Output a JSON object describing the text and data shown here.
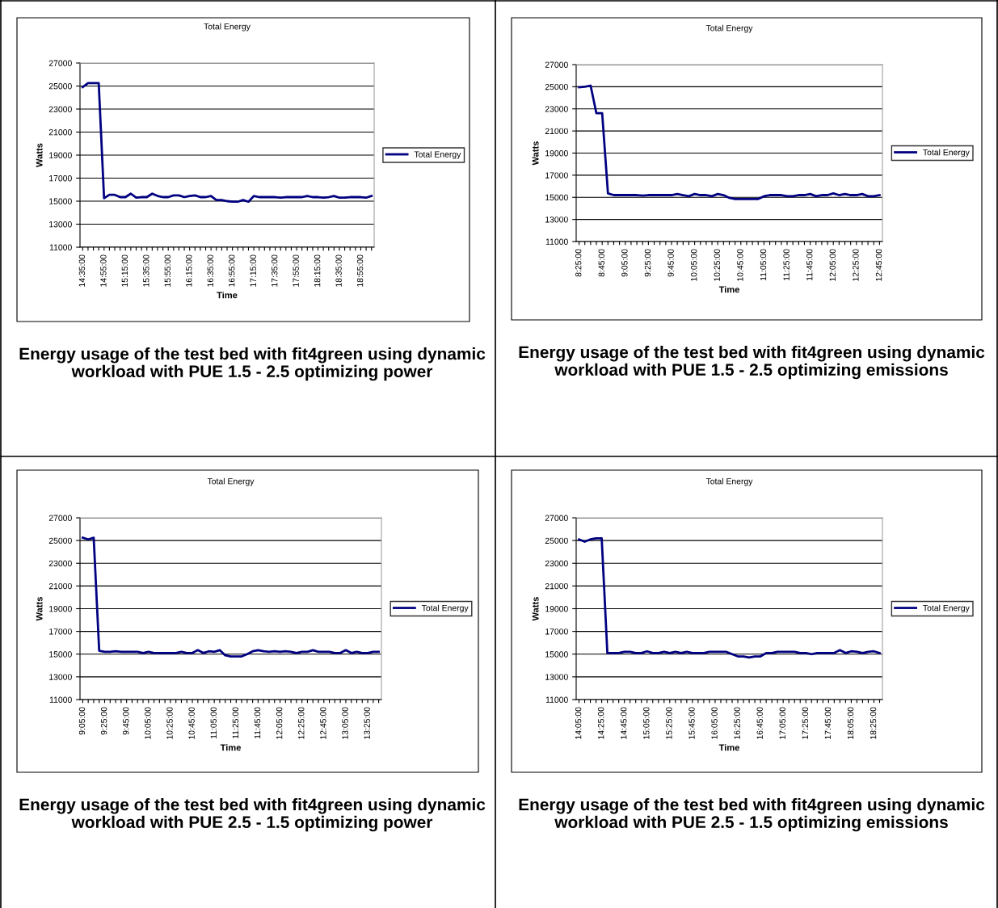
{
  "chart_data": [
    {
      "type": "line",
      "title": "Total Energy",
      "xlabel": "Time",
      "ylabel": "Watts",
      "grid": "y",
      "legend": "right",
      "ylim": [
        11000,
        27000
      ],
      "yticks": [
        11000,
        13000,
        15000,
        17000,
        19000,
        21000,
        23000,
        25000,
        27000
      ],
      "annotations": [
        "Energy usage of the test bed with fit4green using dynamic workload with PUE 1.5 - 2.5 optimizing power"
      ],
      "categories": [
        "14:35:00",
        null,
        null,
        null,
        "14:55:00",
        null,
        null,
        null,
        "15:15:00",
        null,
        null,
        null,
        "15:35:00",
        null,
        null,
        null,
        "15:55:00",
        null,
        null,
        null,
        "16:15:00",
        null,
        null,
        null,
        "16:35:00",
        null,
        null,
        null,
        "16:55:00",
        null,
        null,
        null,
        "17:15:00",
        null,
        null,
        null,
        "17:35:00",
        null,
        null,
        null,
        "17:55:00",
        null,
        null,
        null,
        "18:15:00",
        null,
        null,
        null,
        "18:35:00",
        null,
        null,
        null,
        "18:55:00",
        null,
        null
      ],
      "series": [
        {
          "name": "Total Energy",
          "color": "#000080",
          "values": [
            24900,
            25250,
            25250,
            25250,
            15250,
            15550,
            15550,
            15350,
            15350,
            15650,
            15300,
            15350,
            15350,
            15650,
            15450,
            15350,
            15350,
            15500,
            15500,
            15350,
            15450,
            15500,
            15350,
            15350,
            15450,
            15100,
            15100,
            15000,
            14950,
            14950,
            15100,
            14950,
            15450,
            15350,
            15350,
            15350,
            15350,
            15300,
            15350,
            15350,
            15350,
            15350,
            15450,
            15350,
            15350,
            15300,
            15350,
            15450,
            15300,
            15300,
            15350,
            15350,
            15350,
            15300,
            15450
          ]
        }
      ]
    },
    {
      "type": "line",
      "title": "Total Energy",
      "xlabel": "Time",
      "ylabel": "Watts",
      "grid": "y",
      "legend": "right",
      "ylim": [
        11000,
        27000
      ],
      "yticks": [
        11000,
        13000,
        15000,
        17000,
        19000,
        21000,
        23000,
        25000,
        27000
      ],
      "annotations": [
        "Energy usage of the test bed with fit4green using dynamic workload with PUE 1.5 - 2.5 optimizing emissions"
      ],
      "categories": [
        "8:25:00",
        null,
        null,
        null,
        "8:45:00",
        null,
        null,
        null,
        "9:05:00",
        null,
        null,
        null,
        "9:25:00",
        null,
        null,
        null,
        "9:45:00",
        null,
        null,
        null,
        "10:05:00",
        null,
        null,
        null,
        "10:25:00",
        null,
        null,
        null,
        "10:45:00",
        null,
        null,
        null,
        "11:05:00",
        null,
        null,
        null,
        "11:25:00",
        null,
        null,
        null,
        "11:45:00",
        null,
        null,
        null,
        "12:05:00",
        null,
        null,
        null,
        "12:25:00",
        null,
        null,
        null,
        "12:45:00"
      ],
      "series": [
        {
          "name": "Total Energy",
          "color": "#000080",
          "values": [
            24950,
            25000,
            25100,
            22600,
            22600,
            15350,
            15200,
            15200,
            15200,
            15200,
            15200,
            15150,
            15200,
            15200,
            15200,
            15200,
            15200,
            15300,
            15200,
            15100,
            15300,
            15200,
            15200,
            15100,
            15300,
            15200,
            14950,
            14850,
            14850,
            14850,
            14850,
            14850,
            15100,
            15200,
            15200,
            15200,
            15100,
            15100,
            15200,
            15200,
            15300,
            15100,
            15200,
            15200,
            15350,
            15200,
            15300,
            15200,
            15200,
            15300,
            15100,
            15100,
            15200
          ]
        }
      ]
    },
    {
      "type": "line",
      "title": "Total Energy",
      "xlabel": "Time",
      "ylabel": "Watts",
      "grid": "y",
      "legend": "right",
      "ylim": [
        11000,
        27000
      ],
      "yticks": [
        11000,
        13000,
        15000,
        17000,
        19000,
        21000,
        23000,
        25000,
        27000
      ],
      "annotations": [
        "Energy usage of the test bed with fit4green using dynamic workload with PUE 2.5 - 1.5 optimizing power"
      ],
      "categories": [
        "9:05:00",
        null,
        null,
        null,
        "9:25:00",
        null,
        null,
        null,
        "9:45:00",
        null,
        null,
        null,
        "10:05:00",
        null,
        null,
        null,
        "10:25:00",
        null,
        null,
        null,
        "10:45:00",
        null,
        null,
        null,
        "11:05:00",
        null,
        null,
        null,
        "11:25:00",
        null,
        null,
        null,
        "11:45:00",
        null,
        null,
        null,
        "12:05:00",
        null,
        null,
        null,
        "12:25:00",
        null,
        null,
        null,
        "12:45:00",
        null,
        null,
        null,
        "13:05:00",
        null,
        null,
        null,
        "13:25:00",
        null,
        null
      ],
      "series": [
        {
          "name": "Total Energy",
          "color": "#000080",
          "values": [
            25250,
            25100,
            25250,
            15300,
            15200,
            15200,
            15250,
            15200,
            15200,
            15200,
            15200,
            15100,
            15200,
            15100,
            15100,
            15100,
            15100,
            15100,
            15200,
            15100,
            15100,
            15350,
            15100,
            15250,
            15200,
            15350,
            14900,
            14800,
            14800,
            14800,
            15000,
            15250,
            15350,
            15250,
            15200,
            15250,
            15200,
            15250,
            15200,
            15100,
            15200,
            15200,
            15350,
            15200,
            15200,
            15200,
            15100,
            15100,
            15350,
            15100,
            15200,
            15100,
            15100,
            15200,
            15200
          ]
        }
      ]
    },
    {
      "type": "line",
      "title": "Total Energy",
      "xlabel": "Time",
      "ylabel": "Watts",
      "grid": "y",
      "legend": "right",
      "ylim": [
        11000,
        27000
      ],
      "yticks": [
        11000,
        13000,
        15000,
        17000,
        19000,
        21000,
        23000,
        25000,
        27000
      ],
      "annotations": [
        "Energy usage of the test bed with fit4green using dynamic workload with PUE 2.5 - 1.5 optimizing emissions"
      ],
      "categories": [
        "14:05:00",
        null,
        null,
        null,
        "14:25:00",
        null,
        null,
        null,
        "14:45:00",
        null,
        null,
        null,
        "15:05:00",
        null,
        null,
        null,
        "15:25:00",
        null,
        null,
        null,
        "15:45:00",
        null,
        null,
        null,
        "16:05:00",
        null,
        null,
        null,
        "16:25:00",
        null,
        null,
        null,
        "16:45:00",
        null,
        null,
        null,
        "17:05:00",
        null,
        null,
        null,
        "17:25:00",
        null,
        null,
        null,
        "17:45:00",
        null,
        null,
        null,
        "18:05:00",
        null,
        null,
        null,
        "18:25:00",
        null
      ],
      "series": [
        {
          "name": "Total Energy",
          "color": "#000080",
          "values": [
            25100,
            24900,
            25100,
            25200,
            25200,
            15100,
            15100,
            15100,
            15200,
            15200,
            15100,
            15100,
            15250,
            15100,
            15100,
            15200,
            15100,
            15200,
            15100,
            15200,
            15100,
            15100,
            15100,
            15200,
            15200,
            15200,
            15200,
            15000,
            14800,
            14800,
            14700,
            14800,
            14800,
            15100,
            15100,
            15200,
            15200,
            15200,
            15200,
            15100,
            15100,
            15000,
            15100,
            15100,
            15100,
            15100,
            15350,
            15100,
            15250,
            15200,
            15100,
            15200,
            15250,
            15100
          ]
        }
      ]
    }
  ]
}
